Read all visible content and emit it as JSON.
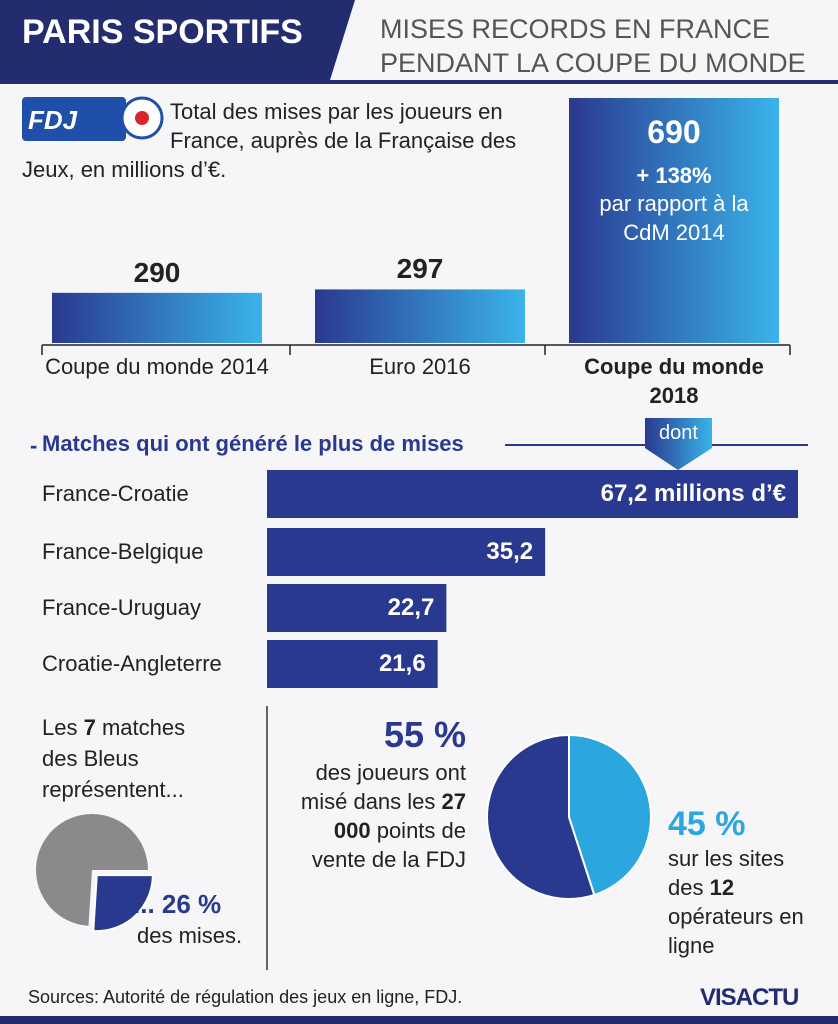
{
  "header": {
    "title": "PARIS SPORTIFS",
    "subtitle_lines": [
      "MISES RECORDS EN FRANCE",
      "PENDANT LA COUPE DU MONDE"
    ]
  },
  "logo": "FDJ",
  "chart_data": [
    {
      "type": "bar",
      "title": "Total des mises par les joueurs en France, auprès de la Française des Jeux, en millions d’€.",
      "categories": [
        "Coupe du monde 2014",
        "Euro 2016",
        "Coupe du monde 2018"
      ],
      "values": [
        290,
        297,
        690
      ],
      "ylim": [
        187,
        690
      ],
      "annotation": "+ 138%",
      "annotation_note": "par rapport à la CdM 2014",
      "colors": [
        "#2a3990",
        "#3ab4ea"
      ]
    },
    {
      "type": "hbar",
      "title": "Matches qui ont généré le plus de mises",
      "annotation": "dont",
      "categories": [
        "France-Croatie",
        "France-Belgique",
        "France-Uruguay",
        "Croatie-Angleterre"
      ],
      "values": [
        67.2,
        35.2,
        22.7,
        21.6
      ],
      "value_labels": [
        "67,2 millions d’€",
        "35,2",
        "22,7",
        "21,6"
      ],
      "xlim": [
        0,
        67.2
      ],
      "color": "#2a3990"
    },
    {
      "type": "pie",
      "intro": [
        "Les ",
        "7",
        " matches des Bleus représentent..."
      ],
      "values": [
        26
      ],
      "value_labels": [
        "... 26 %"
      ],
      "note": "des mises.",
      "colors": [
        "#2a3990",
        "#8a8a8c"
      ]
    },
    {
      "type": "pie",
      "values": [
        55,
        45
      ],
      "value_labels": [
        "55 %",
        "45 %"
      ],
      "notes": [
        [
          "des joueurs ont misé dans les ",
          "27 000",
          " points de vente de la FDJ"
        ],
        [
          "sur les sites des ",
          "12",
          " opérateurs en ligne"
        ]
      ],
      "colors": [
        "#2a3990",
        "#2ba6de"
      ]
    }
  ],
  "source": "Sources: Autorité de régulation des jeux en ligne, FDJ.",
  "brand": "VISACTU"
}
